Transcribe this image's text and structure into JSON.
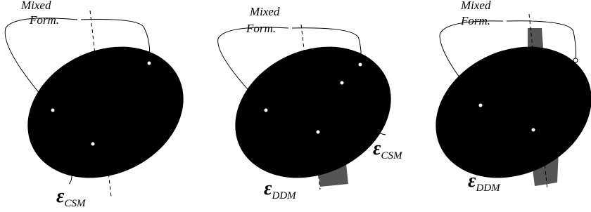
{
  "panels": [
    {
      "mixed": [
        "Mixed",
        "Form."
      ],
      "labels": [
        {
          "symbol": "ε",
          "sub": "CSM"
        }
      ]
    },
    {
      "mixed": [
        "Mixed",
        "Form."
      ],
      "labels": [
        {
          "symbol": "ε",
          "sub": "CSM"
        },
        {
          "symbol": "ε",
          "sub": "DDM"
        }
      ]
    },
    {
      "mixed": [
        "Mixed",
        "Form."
      ],
      "labels": [
        {
          "symbol": "ε",
          "sub": "DDM"
        }
      ]
    }
  ]
}
